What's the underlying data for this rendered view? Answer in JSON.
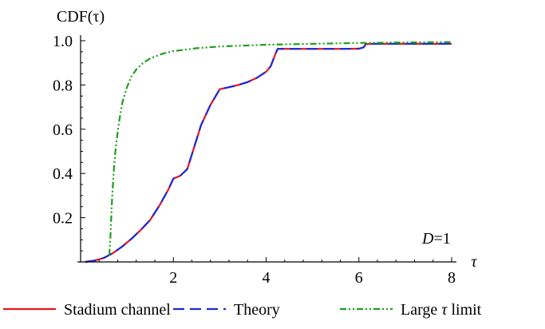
{
  "chart_data": {
    "type": "line",
    "ylabel": "CDF(τ)",
    "xlabel": "τ",
    "annotation": "D=1",
    "xlim": [
      0,
      8.1
    ],
    "ylim": [
      0,
      1.04
    ],
    "xticks": [
      2,
      4,
      6,
      8
    ],
    "yticks": [
      0.2,
      0.4,
      0.6,
      0.8,
      1.0
    ],
    "xtick_labels": [
      "2",
      "4",
      "6",
      "8"
    ],
    "ytick_labels": [
      "0.2",
      "0.4",
      "0.6",
      "0.8",
      "1.0"
    ],
    "grid": false,
    "legend_position": "bottom",
    "series": [
      {
        "name": "Stadium channel",
        "color": "#e8141e",
        "dash": "solid",
        "x": [
          0.1,
          0.3,
          0.5,
          0.7,
          0.9,
          1.1,
          1.3,
          1.5,
          1.7,
          1.9,
          2.0,
          2.15,
          2.3,
          2.45,
          2.6,
          2.8,
          3.0,
          3.2,
          3.4,
          3.6,
          3.8,
          4.0,
          4.1,
          4.2,
          4.25,
          4.4,
          4.8,
          5.2,
          5.6,
          6.0,
          6.1,
          6.15,
          6.3,
          7.0,
          8.0
        ],
        "y": [
          0.0,
          0.006,
          0.018,
          0.04,
          0.07,
          0.105,
          0.145,
          0.19,
          0.255,
          0.33,
          0.377,
          0.39,
          0.42,
          0.52,
          0.62,
          0.71,
          0.781,
          0.79,
          0.8,
          0.813,
          0.832,
          0.86,
          0.885,
          0.94,
          0.963,
          0.963,
          0.963,
          0.963,
          0.963,
          0.964,
          0.97,
          0.985,
          0.986,
          0.986,
          0.986
        ]
      },
      {
        "name": "Theory",
        "color": "#1d2bd4",
        "dash": "dashed",
        "x": [
          0.1,
          0.3,
          0.5,
          0.7,
          0.9,
          1.1,
          1.3,
          1.5,
          1.7,
          1.9,
          2.0,
          2.15,
          2.3,
          2.45,
          2.6,
          2.8,
          3.0,
          3.2,
          3.4,
          3.6,
          3.8,
          4.0,
          4.1,
          4.2,
          4.25,
          4.4,
          4.8,
          5.2,
          5.6,
          6.0,
          6.1,
          6.15,
          6.3,
          7.0,
          8.0
        ],
        "y": [
          0.0,
          0.006,
          0.018,
          0.04,
          0.07,
          0.105,
          0.145,
          0.19,
          0.255,
          0.33,
          0.377,
          0.39,
          0.42,
          0.52,
          0.62,
          0.71,
          0.781,
          0.79,
          0.8,
          0.813,
          0.832,
          0.86,
          0.885,
          0.94,
          0.963,
          0.963,
          0.963,
          0.963,
          0.963,
          0.964,
          0.97,
          0.985,
          0.986,
          0.986,
          0.986
        ]
      },
      {
        "name": "Large τ limit",
        "color": "#1ca01c",
        "dash": "dash-dot",
        "x": [
          0.62,
          0.64,
          0.66,
          0.68,
          0.7,
          0.72,
          0.75,
          0.8,
          0.85,
          0.9,
          1.0,
          1.1,
          1.2,
          1.35,
          1.5,
          1.75,
          2.0,
          2.5,
          3.0,
          3.5,
          4.0,
          5.0,
          6.0,
          7.0,
          8.0
        ],
        "y": [
          0.03,
          0.1,
          0.2,
          0.29,
          0.36,
          0.42,
          0.5,
          0.59,
          0.66,
          0.72,
          0.79,
          0.84,
          0.87,
          0.9,
          0.92,
          0.94,
          0.953,
          0.966,
          0.974,
          0.978,
          0.982,
          0.986,
          0.99,
          0.992,
          0.994
        ]
      }
    ]
  }
}
